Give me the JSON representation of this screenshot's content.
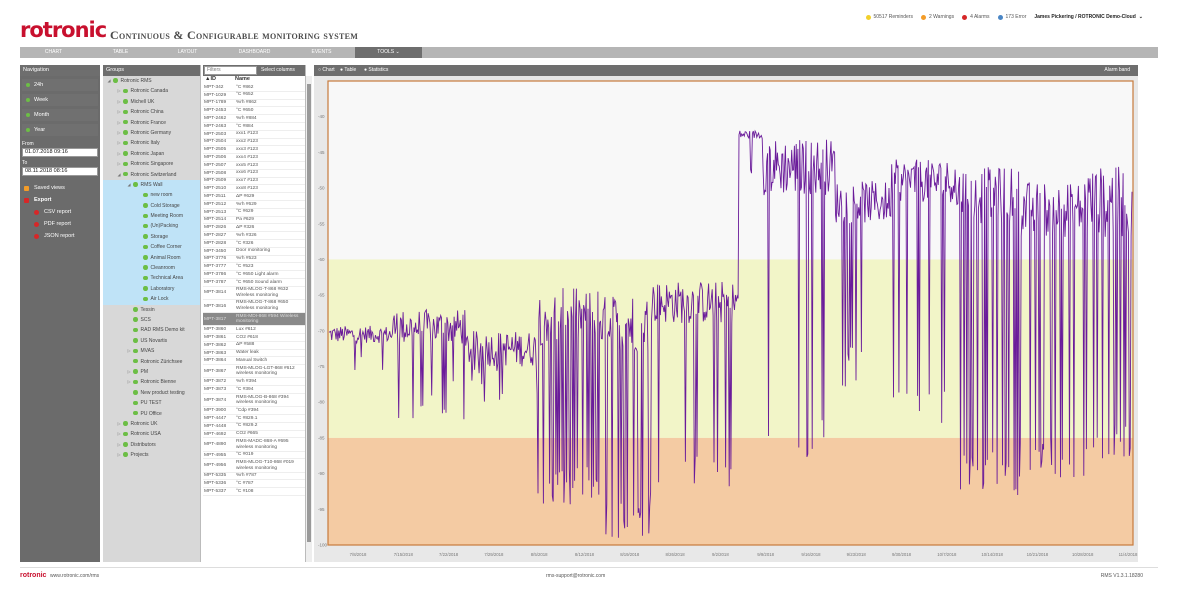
{
  "header": {
    "logo": "rotronic",
    "title": "Continuous & Configurable monitoring system",
    "status": [
      {
        "label": "50517 Reminders",
        "color": "#f2d02b"
      },
      {
        "label": "2 Warnings",
        "color": "#f39c28"
      },
      {
        "label": "4 Alarms",
        "color": "#d62728"
      },
      {
        "label": "173 Error",
        "color": "#4a86c5"
      }
    ],
    "user": "James Pickering / ROTRONIC Demo-Cloud"
  },
  "menu": [
    "CHART",
    "TABLE",
    "LAYOUT",
    "DASHBOARD",
    "EVENTS",
    "TOOLS"
  ],
  "nav": {
    "title": "Navigation",
    "periods": [
      "24h",
      "Week",
      "Month",
      "Year"
    ],
    "from_label": "From",
    "from": "01.07.2018 09:16",
    "to_label": "To",
    "to": "08.11.2018 08:16",
    "saved_views": "Saved views",
    "export": "Export",
    "exports": [
      "CSV report",
      "PDF report",
      "JSON report"
    ]
  },
  "groups": {
    "title": "Groups",
    "tree": [
      {
        "label": "Rotronic RMS",
        "level": 0,
        "exp": "open"
      },
      {
        "label": "Rotronic Canada",
        "level": 1,
        "exp": "closed"
      },
      {
        "label": "Michell UK",
        "level": 1,
        "exp": "closed"
      },
      {
        "label": "Rotronic China",
        "level": 1,
        "exp": "closed"
      },
      {
        "label": "Rotronic France",
        "level": 1,
        "exp": "closed"
      },
      {
        "label": "Rotronic Germany",
        "level": 1,
        "exp": "closed"
      },
      {
        "label": "Rotronic Italy",
        "level": 1,
        "exp": "closed"
      },
      {
        "label": "Rotronic Japan",
        "level": 1,
        "exp": "closed"
      },
      {
        "label": "Rotronic Singapore",
        "level": 1,
        "exp": "closed"
      },
      {
        "label": "Rotronic Switzerland",
        "level": 1,
        "exp": "open"
      },
      {
        "label": "RMS Wall",
        "level": 2,
        "exp": "open",
        "sel": true
      },
      {
        "label": "new room",
        "level": 3,
        "sel": true
      },
      {
        "label": "Cold Storage",
        "level": 3,
        "sel": true
      },
      {
        "label": "Meeting Room",
        "level": 3,
        "sel": true
      },
      {
        "label": "(Un)Packing",
        "level": 3,
        "sel": true
      },
      {
        "label": "Storage",
        "level": 3,
        "sel": true
      },
      {
        "label": "Coffee Corner",
        "level": 3,
        "sel": true
      },
      {
        "label": "Animal Room",
        "level": 3,
        "sel": true
      },
      {
        "label": "Cleanroom",
        "level": 3,
        "sel": true
      },
      {
        "label": "Technical Area",
        "level": 3,
        "sel": true
      },
      {
        "label": "Laboratory",
        "level": 3,
        "sel": true
      },
      {
        "label": "Air Lock",
        "level": 3,
        "sel": true
      },
      {
        "label": "Tessin",
        "level": 2
      },
      {
        "label": "SCS",
        "level": 2
      },
      {
        "label": "RAD RMS Demo kit",
        "level": 2
      },
      {
        "label": "US Novartis",
        "level": 2
      },
      {
        "label": "MVAS",
        "level": 2,
        "exp": "closed"
      },
      {
        "label": "Rotronic Zürichsee",
        "level": 2
      },
      {
        "label": "PM",
        "level": 2,
        "exp": "closed"
      },
      {
        "label": "Rotronic Bienne",
        "level": 2,
        "exp": "closed"
      },
      {
        "label": "New product testing",
        "level": 2
      },
      {
        "label": "PU TEST",
        "level": 2
      },
      {
        "label": "PU Office",
        "level": 2
      },
      {
        "label": "Rotronic UK",
        "level": 1,
        "exp": "closed"
      },
      {
        "label": "Rotronic USA",
        "level": 1,
        "exp": "closed"
      },
      {
        "label": "Distributors",
        "level": 1,
        "exp": "closed"
      },
      {
        "label": "Projects",
        "level": 1,
        "exp": "closed"
      }
    ]
  },
  "table": {
    "filter_placeholder": "Filters",
    "select_columns": "Select columns",
    "col_id": "▲ID",
    "col_name": "Name",
    "rows": [
      [
        "MPT-342",
        "°C #862"
      ],
      [
        "MPT-1029",
        "°C #652"
      ],
      [
        "MPT-1789",
        "%rh #862"
      ],
      [
        "MPT-2453",
        "°C #650"
      ],
      [
        "MPT-2462",
        "%rh #884"
      ],
      [
        "MPT-2463",
        "°C #884"
      ],
      [
        "MPT-2503",
        "xxx1 #123"
      ],
      [
        "MPT-2504",
        "xxx2 #123"
      ],
      [
        "MPT-2505",
        "xxx3 #123"
      ],
      [
        "MPT-2506",
        "xxx4 #123"
      ],
      [
        "MPT-2507",
        "xxx5 #123"
      ],
      [
        "MPT-2508",
        "xxx6 #123"
      ],
      [
        "MPT-2509",
        "xxx7 #123"
      ],
      [
        "MPT-2510",
        "xxx8 #123"
      ],
      [
        "MPT-2511",
        "ΔP #629"
      ],
      [
        "MPT-2512",
        "%rh #629"
      ],
      [
        "MPT-2513",
        "°C #629"
      ],
      [
        "MPT-2514",
        "Pa #629"
      ],
      [
        "MPT-2826",
        "ΔP #326"
      ],
      [
        "MPT-2827",
        "%rh #326"
      ],
      [
        "MPT-2828",
        "°C #326"
      ],
      [
        "MPT-3450",
        "Door monitoring"
      ],
      [
        "MPT-3776",
        "%rh #523"
      ],
      [
        "MPT-3777",
        "°C #523"
      ],
      [
        "MPT-3786",
        "°C #650 Light alarm"
      ],
      [
        "MPT-3787",
        "°C #650 Sound alarm"
      ],
      [
        "MPT-3814",
        "RMS-MLOG-T-868 #632 Wireless monitoring"
      ],
      [
        "MPT-3816",
        "RMS-MLOG-T-868 #650 Wireless monitoring"
      ],
      [
        "MPT-3817",
        "RMS-MDI-868 #594 Wireless monitoring"
      ],
      [
        "MPT-3860",
        "Lux #612"
      ],
      [
        "MPT-3861",
        "CO2 #618"
      ],
      [
        "MPT-3862",
        "ΔP #588"
      ],
      [
        "MPT-3863",
        "Water leak"
      ],
      [
        "MPT-3864",
        "Manual Switch"
      ],
      [
        "MPT-3867",
        "RMS-MLOG-LGT-868 #612 wireless monitoring"
      ],
      [
        "MPT-3872",
        "%rh #394"
      ],
      [
        "MPT-3873",
        "°C #394"
      ],
      [
        "MPT-3874",
        "RMS-MLOG-B-868 #394 wireless monitoring"
      ],
      [
        "MPT-3900",
        "°Cdp #394"
      ],
      [
        "MPT-4447",
        "°C #829.1"
      ],
      [
        "MPT-4448",
        "°C #829.2"
      ],
      [
        "MPT-4692",
        "CO2 #665"
      ],
      [
        "MPT-4890",
        "RMS-MADC-868-A #695 wireless monitoring"
      ],
      [
        "MPT-4955",
        "°C #019"
      ],
      [
        "MPT-4956",
        "RMS-MLOG-T10-868 #019 wireless monitoring"
      ],
      [
        "MPT-5335",
        "%rh #787"
      ],
      [
        "MPT-5336",
        "°C #787"
      ],
      [
        "MPT-5337",
        "°C #108"
      ]
    ],
    "highlighted_id": "MPT-3817"
  },
  "chart_header": {
    "options": [
      "Chart",
      "Table",
      "Statistics"
    ],
    "alarm_band": "Alarm band"
  },
  "chart_data": {
    "type": "line",
    "ylim": [
      -100,
      -35
    ],
    "yticks": [
      -40,
      -45,
      -50,
      -55,
      -60,
      -65,
      -70,
      -75,
      -80,
      -85,
      -90,
      -95,
      -100
    ],
    "xticks": [
      "7/8/2018",
      "7/15/2018",
      "7/22/2018",
      "7/29/2018",
      "8/5/2018",
      "8/12/2018",
      "8/19/2018",
      "8/26/2018",
      "9/2/2018",
      "9/9/2018",
      "9/16/2018",
      "9/23/2018",
      "9/30/2018",
      "10/7/2018",
      "10/14/2018",
      "10/21/2018",
      "10/28/2018",
      "11/4/2018"
    ],
    "alarm_bands": [
      {
        "from": -35,
        "to": -60,
        "color": "#f8f8f8"
      },
      {
        "from": -60,
        "to": -85,
        "color": "#f2f5c8"
      },
      {
        "from": -85,
        "to": -100,
        "color": "#f4cba3"
      }
    ],
    "series_color": "#6a1b9a",
    "segments": [
      {
        "x0": 0.0,
        "x1": 0.08,
        "mean": -70.5,
        "noise": 1.2,
        "spike": 0.03,
        "spike_to": -74
      },
      {
        "x0": 0.08,
        "x1": 0.17,
        "mean": -69.5,
        "noise": 2.5,
        "spike": 0.12,
        "spike_to": -80
      },
      {
        "x0": 0.17,
        "x1": 0.26,
        "mean": -72.5,
        "noise": 2.5,
        "spike": 0.1,
        "spike_to": -78
      },
      {
        "x0": 0.26,
        "x1": 0.34,
        "mean": -68,
        "noise": 4,
        "spike": 0.35,
        "spike_to": -92
      },
      {
        "x0": 0.34,
        "x1": 0.4,
        "mean": -69,
        "noise": 4,
        "spike": 0.25,
        "spike_to": -96
      },
      {
        "x0": 0.4,
        "x1": 0.51,
        "mean": -66,
        "noise": 3,
        "spike": 0.1,
        "spike_to": -90
      },
      {
        "x0": 0.51,
        "x1": 0.54,
        "mean": -42.5,
        "noise": 0.6,
        "spike": 0.05,
        "spike_to": -50
      },
      {
        "x0": 0.54,
        "x1": 0.63,
        "mean": -47,
        "noise": 4,
        "spike": 0.1,
        "spike_to": -85
      },
      {
        "x0": 0.63,
        "x1": 0.7,
        "mean": -52,
        "noise": 3,
        "spike": 0.08,
        "spike_to": -75
      },
      {
        "x0": 0.7,
        "x1": 0.78,
        "mean": -49,
        "noise": 3,
        "spike": 0.15,
        "spike_to": -80
      },
      {
        "x0": 0.78,
        "x1": 0.86,
        "mean": -51,
        "noise": 4,
        "spike": 0.2,
        "spike_to": -90
      },
      {
        "x0": 0.86,
        "x1": 0.94,
        "mean": -53,
        "noise": 4,
        "spike": 0.22,
        "spike_to": -88
      },
      {
        "x0": 0.94,
        "x1": 1.0,
        "mean": -52,
        "noise": 5,
        "spike": 0.25,
        "spike_to": -85
      }
    ]
  },
  "footer": {
    "logo": "rotronic",
    "url": "www.rotronic.com/rms",
    "email": "rms-support@rotronic.com",
    "version": "RMS V1.3.1.18280"
  }
}
